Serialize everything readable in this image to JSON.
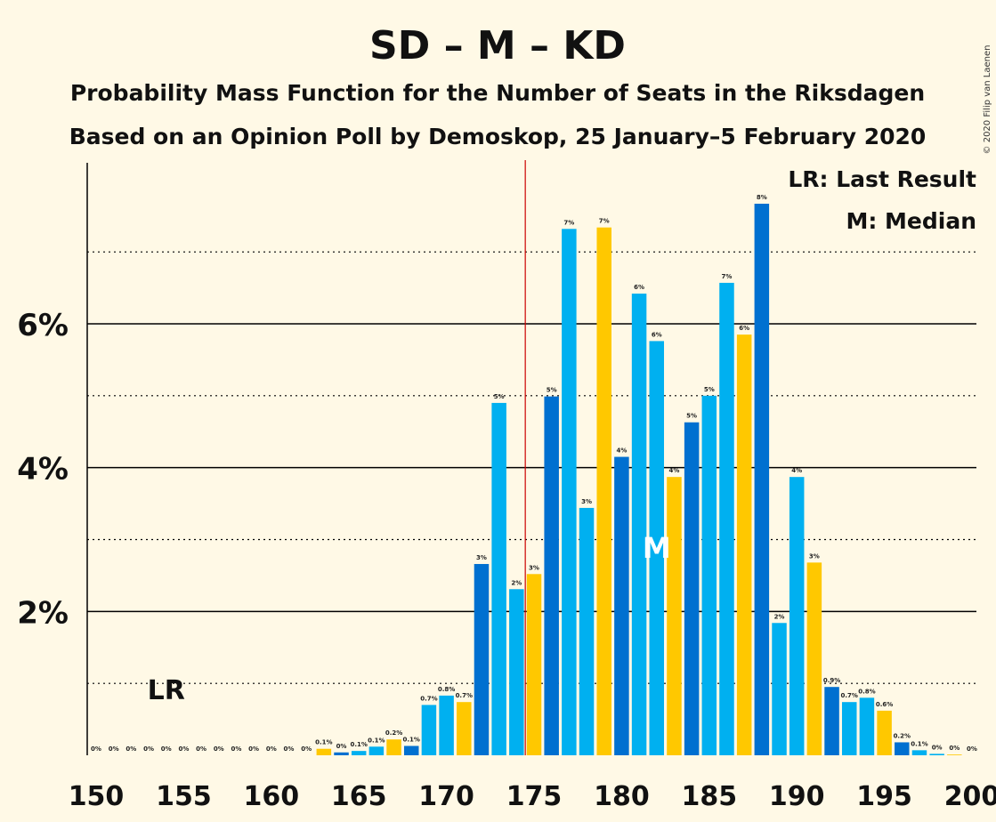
{
  "copyright": "© 2020 Filip van Laenen",
  "chart_data": {
    "type": "bar",
    "title": "SD – M – KD",
    "subtitle1": "Probability Mass Function for the Number of Seats in the Riksdagen",
    "subtitle2": "Based on an Opinion Poll by Demoskop, 25 January–5 February 2020",
    "legend": {
      "lr": "LR: Last Result",
      "m": "M: Median",
      "placement": "top-right"
    },
    "xlim": [
      150,
      200
    ],
    "ylim": [
      0,
      8.4
    ],
    "x_ticks": [
      150,
      155,
      160,
      165,
      170,
      175,
      180,
      185,
      190,
      195,
      200
    ],
    "y_ticks": [
      {
        "v": 2,
        "label": "2%"
      },
      {
        "v": 4,
        "label": "4%"
      },
      {
        "v": 6,
        "label": "6%"
      }
    ],
    "y_minor": [
      1,
      3,
      5,
      7
    ],
    "majority_line": 175,
    "last_result": {
      "seat": 154,
      "label": "LR"
    },
    "median": {
      "seat": 182,
      "label": "M"
    },
    "colors": [
      "#00b0f0",
      "#ffc800",
      "#0070d0",
      "#00b0f0"
    ],
    "bars": [
      {
        "seat": 150,
        "value": 0,
        "label": "0%"
      },
      {
        "seat": 151,
        "value": 0,
        "label": "0%"
      },
      {
        "seat": 152,
        "value": 0,
        "label": "0%"
      },
      {
        "seat": 153,
        "value": 0,
        "label": "0%"
      },
      {
        "seat": 154,
        "value": 0,
        "label": "0%"
      },
      {
        "seat": 155,
        "value": 0,
        "label": "0%"
      },
      {
        "seat": 156,
        "value": 0,
        "label": "0%"
      },
      {
        "seat": 157,
        "value": 0,
        "label": "0%"
      },
      {
        "seat": 158,
        "value": 0,
        "label": "0%"
      },
      {
        "seat": 159,
        "value": 0,
        "label": "0%"
      },
      {
        "seat": 160,
        "value": 0,
        "label": "0%"
      },
      {
        "seat": 161,
        "value": 0,
        "label": "0%"
      },
      {
        "seat": 162,
        "value": 0,
        "label": "0%"
      },
      {
        "seat": 163,
        "value": 0.09,
        "label": "0.1%"
      },
      {
        "seat": 164,
        "value": 0.04,
        "label": "0%"
      },
      {
        "seat": 165,
        "value": 0.06,
        "label": "0.1%"
      },
      {
        "seat": 166,
        "value": 0.12,
        "label": "0.1%"
      },
      {
        "seat": 167,
        "value": 0.22,
        "label": "0.2%"
      },
      {
        "seat": 168,
        "value": 0.13,
        "label": "0.1%"
      },
      {
        "seat": 169,
        "value": 0.7,
        "label": "0.7%"
      },
      {
        "seat": 170,
        "value": 0.83,
        "label": "0.8%"
      },
      {
        "seat": 171,
        "value": 0.74,
        "label": "0.7%"
      },
      {
        "seat": 172,
        "value": 2.66,
        "label": "3%"
      },
      {
        "seat": 173,
        "value": 4.9,
        "label": "5%"
      },
      {
        "seat": 174,
        "value": 2.31,
        "label": "2%"
      },
      {
        "seat": 175,
        "value": 2.52,
        "label": "3%"
      },
      {
        "seat": 176,
        "value": 4.99,
        "label": "5%"
      },
      {
        "seat": 177,
        "value": 7.32,
        "label": "7%"
      },
      {
        "seat": 178,
        "value": 3.44,
        "label": "3%"
      },
      {
        "seat": 179,
        "value": 7.34,
        "label": "7%"
      },
      {
        "seat": 180,
        "value": 4.15,
        "label": "4%"
      },
      {
        "seat": 181,
        "value": 6.42,
        "label": "6%"
      },
      {
        "seat": 182,
        "value": 5.76,
        "label": "6%"
      },
      {
        "seat": 183,
        "value": 3.87,
        "label": "4%"
      },
      {
        "seat": 184,
        "value": 4.63,
        "label": "5%"
      },
      {
        "seat": 185,
        "value": 5.0,
        "label": "5%"
      },
      {
        "seat": 186,
        "value": 6.57,
        "label": "7%"
      },
      {
        "seat": 187,
        "value": 5.85,
        "label": "6%"
      },
      {
        "seat": 188,
        "value": 7.67,
        "label": "8%"
      },
      {
        "seat": 189,
        "value": 1.84,
        "label": "2%"
      },
      {
        "seat": 190,
        "value": 3.87,
        "label": "4%"
      },
      {
        "seat": 191,
        "value": 2.68,
        "label": "3%"
      },
      {
        "seat": 192,
        "value": 0.95,
        "label": "0.9%"
      },
      {
        "seat": 193,
        "value": 0.74,
        "label": "0.7%"
      },
      {
        "seat": 194,
        "value": 0.8,
        "label": "0.8%"
      },
      {
        "seat": 195,
        "value": 0.62,
        "label": "0.6%"
      },
      {
        "seat": 196,
        "value": 0.18,
        "label": "0.2%"
      },
      {
        "seat": 197,
        "value": 0.07,
        "label": "0.1%"
      },
      {
        "seat": 198,
        "value": 0.02,
        "label": "0%"
      },
      {
        "seat": 199,
        "value": 0.01,
        "label": "0%"
      },
      {
        "seat": 200,
        "value": 0,
        "label": "0%"
      }
    ]
  }
}
